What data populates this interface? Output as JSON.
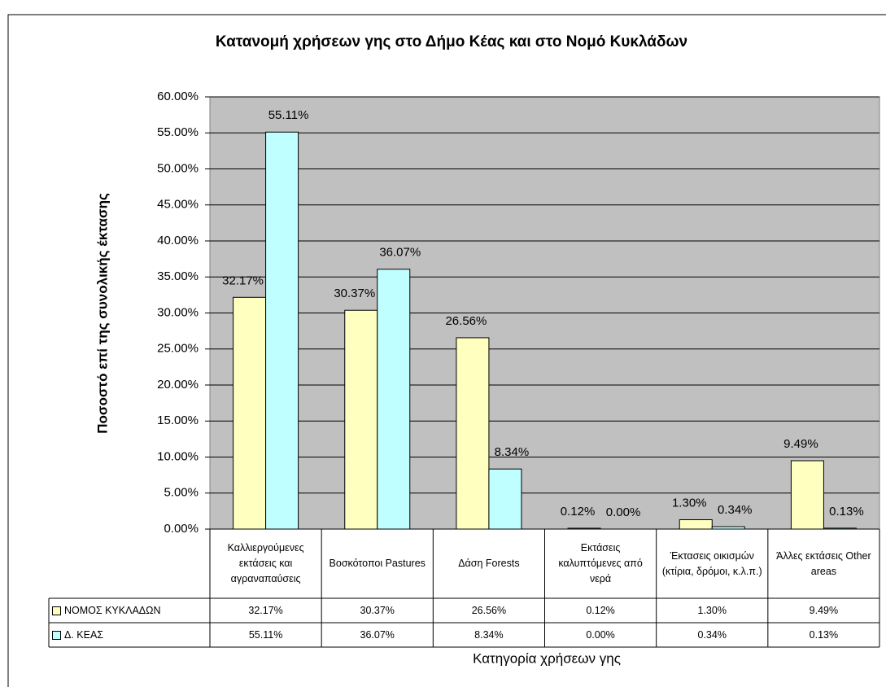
{
  "chart_data": {
    "type": "bar",
    "title": "Κατανομή χρήσεων γης στο Δήμο Κέας και στο Νομό Κυκλάδων",
    "y_label": "Ποσοστό επί της συνολικής έκτασης",
    "x_label": "Κατηγορία χρήσεων γης",
    "categories": [
      "Καλλιεργούμενες εκτάσεις και αγραναπαύσεις",
      "Βοσκότοποι Pastures",
      "Δάση Forests",
      "Εκτάσεις καλυπτόμενες από νερά",
      "Έκτασεις οικισμών (κτίρια, δρόμοι, κ.λ.π.)",
      "Άλλες εκτάσεις Other areas"
    ],
    "series": [
      {
        "name": "ΝΟΜΟΣ ΚΥΚΛΑΔΩΝ",
        "color": "#ffffc0",
        "values": [
          32.17,
          30.37,
          26.56,
          0.12,
          1.3,
          9.49
        ],
        "value_labels": [
          "32.17%",
          "30.37%",
          "26.56%",
          "0.12%",
          "1.30%",
          "9.49%"
        ]
      },
      {
        "name": "Δ. ΚΕΑΣ",
        "color": "#c0ffff",
        "values": [
          55.11,
          36.07,
          8.34,
          0.0,
          0.34,
          0.13
        ],
        "value_labels": [
          "55.11%",
          "36.07%",
          "8.34%",
          "0.00%",
          "0.34%",
          "0.13%"
        ]
      }
    ],
    "ylim": [
      0,
      60
    ],
    "yticks": [
      {
        "value": 0,
        "label": "0.00%"
      },
      {
        "value": 5,
        "label": "5.00%"
      },
      {
        "value": 10,
        "label": "10.00%"
      },
      {
        "value": 15,
        "label": "15.00%"
      },
      {
        "value": 20,
        "label": "20.00%"
      },
      {
        "value": 25,
        "label": "25.00%"
      },
      {
        "value": 30,
        "label": "30.00%"
      },
      {
        "value": 35,
        "label": "35.00%"
      },
      {
        "value": 40,
        "label": "40.00%"
      },
      {
        "value": 45,
        "label": "45.00%"
      },
      {
        "value": 50,
        "label": "50.00%"
      },
      {
        "value": 55,
        "label": "55.00%"
      },
      {
        "value": 60,
        "label": "60.00%"
      }
    ],
    "grid": true,
    "plot_background": "#c0c0c0"
  }
}
